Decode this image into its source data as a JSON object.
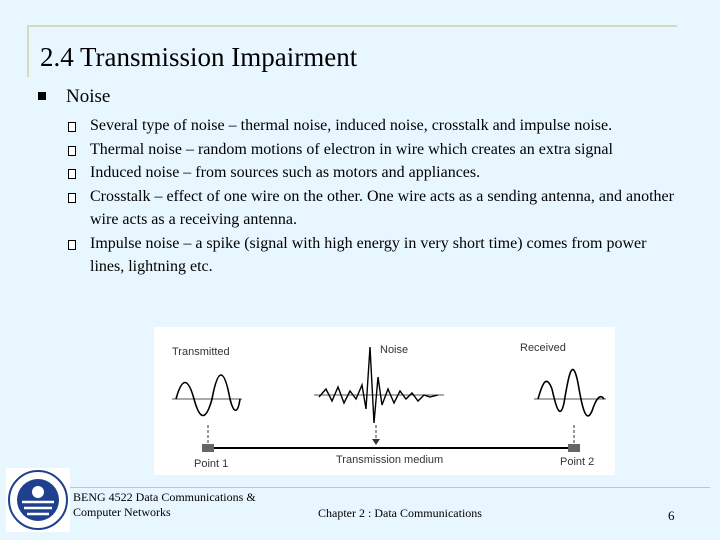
{
  "slide": {
    "title": "2.4 Transmission Impairment",
    "bullet": "Noise",
    "subbullets": [
      "Several type of noise – thermal noise, induced noise, crosstalk and impulse noise.",
      "Thermal noise – random motions of electron in wire which creates an extra signal",
      "Induced noise – from sources such as motors and appliances.",
      "Crosstalk – effect of one wire on the other. One wire acts as a sending antenna, and another wire acts as a receiving antenna.",
      "Impulse noise – a spike (signal with high energy in very short time) comes from power lines, lightning etc."
    ]
  },
  "figure": {
    "label_transmitted": "Transmitted",
    "label_noise": "Noise",
    "label_received": "Received",
    "label_point1": "Point 1",
    "label_medium": "Transmission medium",
    "label_point2": "Point 2"
  },
  "footer": {
    "course": "BENG 4522 Data Communications & Computer Networks",
    "chapter": "Chapter 2 : Data Communications",
    "page": "6"
  },
  "logo": {
    "icon": "university-seal-icon",
    "colors": [
      "#1f3f8f",
      "#ffffff"
    ]
  }
}
